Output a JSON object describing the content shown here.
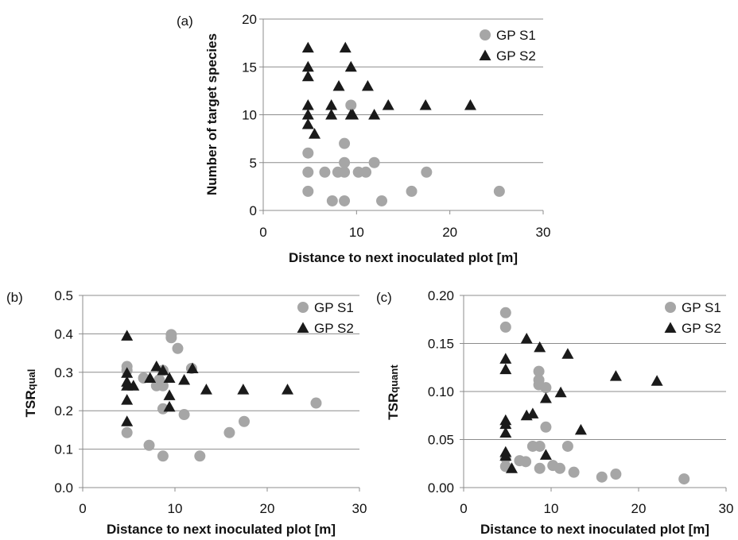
{
  "chart_data": [
    {
      "panel_label": "(a)",
      "type": "scatter",
      "xlabel": "Distance to next inoculated plot [m]",
      "ylabel": "Number of target species",
      "xlim": [
        0,
        30
      ],
      "ylim": [
        0,
        20
      ],
      "xticks": [
        0,
        10,
        20,
        30
      ],
      "yticks": [
        0,
        5,
        10,
        15,
        20
      ],
      "y_decimals": 0,
      "grid": "horizontal",
      "legend": "top-right",
      "series": [
        {
          "name": "GP S1",
          "marker": "circle",
          "color": "#a6a6a6",
          "points": [
            [
              4.8,
              6
            ],
            [
              4.8,
              4
            ],
            [
              4.8,
              2
            ],
            [
              6.6,
              4
            ],
            [
              7.4,
              1
            ],
            [
              8.0,
              4
            ],
            [
              8.7,
              7
            ],
            [
              8.7,
              5
            ],
            [
              8.7,
              4
            ],
            [
              8.7,
              1
            ],
            [
              9.4,
              11
            ],
            [
              10.2,
              4
            ],
            [
              11.0,
              4
            ],
            [
              11.9,
              5
            ],
            [
              12.7,
              1
            ],
            [
              15.9,
              2
            ],
            [
              17.5,
              4
            ],
            [
              25.3,
              2
            ]
          ]
        },
        {
          "name": "GP S2",
          "marker": "triangle",
          "color": "#1a1a1a",
          "points": [
            [
              4.8,
              17
            ],
            [
              4.8,
              15
            ],
            [
              4.8,
              14
            ],
            [
              4.8,
              11
            ],
            [
              4.8,
              10
            ],
            [
              4.8,
              9
            ],
            [
              5.5,
              8
            ],
            [
              7.3,
              11
            ],
            [
              7.3,
              10
            ],
            [
              8.1,
              13
            ],
            [
              8.8,
              17
            ],
            [
              9.4,
              15
            ],
            [
              9.4,
              10
            ],
            [
              9.6,
              10
            ],
            [
              11.2,
              13
            ],
            [
              11.9,
              10
            ],
            [
              13.4,
              11
            ],
            [
              17.4,
              11
            ],
            [
              22.2,
              11
            ]
          ]
        }
      ]
    },
    {
      "panel_label": "(b)",
      "type": "scatter",
      "xlabel": "Distance to next inoculated plot [m]",
      "ylabel": "TSRqual",
      "ylabel_main": "TSR",
      "ylabel_sub": "qual",
      "xlim": [
        0,
        30
      ],
      "ylim": [
        0,
        0.5
      ],
      "xticks": [
        0,
        10,
        20,
        30
      ],
      "yticks": [
        0.0,
        0.1,
        0.2,
        0.3,
        0.4,
        0.5
      ],
      "y_decimals": 1,
      "grid": "horizontal",
      "legend": "top-right",
      "series": [
        {
          "name": "GP S1",
          "marker": "circle",
          "color": "#a6a6a6",
          "points": [
            [
              4.8,
              0.315
            ],
            [
              4.8,
              0.305
            ],
            [
              4.8,
              0.143
            ],
            [
              6.6,
              0.285
            ],
            [
              7.2,
              0.11
            ],
            [
              8.0,
              0.265
            ],
            [
              8.3,
              0.28
            ],
            [
              8.7,
              0.305
            ],
            [
              8.7,
              0.265
            ],
            [
              8.7,
              0.205
            ],
            [
              8.7,
              0.082
            ],
            [
              9.6,
              0.398
            ],
            [
              9.6,
              0.39
            ],
            [
              10.3,
              0.362
            ],
            [
              11.0,
              0.19
            ],
            [
              11.8,
              0.31
            ],
            [
              12.7,
              0.082
            ],
            [
              15.9,
              0.143
            ],
            [
              17.5,
              0.172
            ],
            [
              25.3,
              0.22
            ]
          ]
        },
        {
          "name": "GP S2",
          "marker": "triangle",
          "color": "#1a1a1a",
          "points": [
            [
              4.8,
              0.395
            ],
            [
              4.8,
              0.298
            ],
            [
              4.8,
              0.275
            ],
            [
              4.8,
              0.265
            ],
            [
              4.8,
              0.228
            ],
            [
              4.8,
              0.172
            ],
            [
              5.5,
              0.265
            ],
            [
              7.3,
              0.285
            ],
            [
              8.0,
              0.315
            ],
            [
              8.7,
              0.305
            ],
            [
              9.4,
              0.285
            ],
            [
              9.4,
              0.24
            ],
            [
              9.4,
              0.21
            ],
            [
              11.0,
              0.28
            ],
            [
              11.9,
              0.31
            ],
            [
              13.4,
              0.255
            ],
            [
              17.4,
              0.255
            ],
            [
              22.2,
              0.255
            ]
          ]
        }
      ]
    },
    {
      "panel_label": "(c)",
      "type": "scatter",
      "xlabel": "Distance to next inoculated plot [m]",
      "ylabel": "TSRquant",
      "ylabel_main": "TSR",
      "ylabel_sub": "quant",
      "xlim": [
        0,
        30
      ],
      "ylim": [
        0,
        0.2
      ],
      "xticks": [
        0,
        10,
        20,
        30
      ],
      "yticks": [
        0.0,
        0.05,
        0.1,
        0.15,
        0.2
      ],
      "y_decimals": 2,
      "grid": "horizontal",
      "legend": "top-right",
      "series": [
        {
          "name": "GP S1",
          "marker": "circle",
          "color": "#a6a6a6",
          "points": [
            [
              4.8,
              0.182
            ],
            [
              4.8,
              0.167
            ],
            [
              4.8,
              0.031
            ],
            [
              4.8,
              0.022
            ],
            [
              6.4,
              0.028
            ],
            [
              7.1,
              0.027
            ],
            [
              7.9,
              0.043
            ],
            [
              8.6,
              0.121
            ],
            [
              8.6,
              0.112
            ],
            [
              8.6,
              0.107
            ],
            [
              8.7,
              0.043
            ],
            [
              8.7,
              0.02
            ],
            [
              9.4,
              0.104
            ],
            [
              9.4,
              0.063
            ],
            [
              10.2,
              0.023
            ],
            [
              11.0,
              0.02
            ],
            [
              11.9,
              0.043
            ],
            [
              12.6,
              0.016
            ],
            [
              15.8,
              0.011
            ],
            [
              17.4,
              0.014
            ],
            [
              25.2,
              0.009
            ]
          ]
        },
        {
          "name": "GP S2",
          "marker": "triangle",
          "color": "#1a1a1a",
          "points": [
            [
              4.8,
              0.134
            ],
            [
              4.8,
              0.123
            ],
            [
              4.8,
              0.07
            ],
            [
              4.8,
              0.066
            ],
            [
              4.8,
              0.057
            ],
            [
              4.8,
              0.037
            ],
            [
              4.8,
              0.033
            ],
            [
              5.5,
              0.02
            ],
            [
              7.2,
              0.155
            ],
            [
              7.2,
              0.075
            ],
            [
              7.9,
              0.077
            ],
            [
              8.7,
              0.146
            ],
            [
              9.4,
              0.093
            ],
            [
              9.4,
              0.034
            ],
            [
              11.1,
              0.099
            ],
            [
              11.9,
              0.139
            ],
            [
              13.4,
              0.06
            ],
            [
              17.4,
              0.116
            ],
            [
              22.1,
              0.111
            ]
          ]
        }
      ]
    }
  ]
}
